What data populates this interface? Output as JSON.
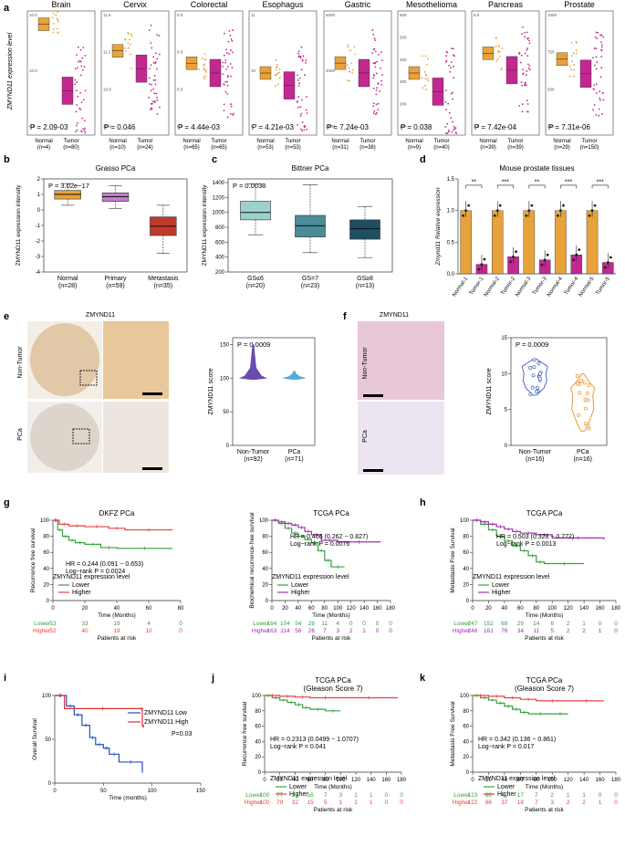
{
  "panel_letters": [
    "a",
    "b",
    "c",
    "d",
    "e",
    "f",
    "g",
    "h",
    "i",
    "j",
    "k"
  ],
  "colors": {
    "normal": "#e8a23a",
    "tumor": "#c2288f",
    "lower": "#3aa040",
    "higher": "#e84040",
    "higher_purple": "#a030b0",
    "low_blue": "#2050c0",
    "high_red": "#e03030"
  },
  "panel_a": {
    "ylabel": "ZMYND11 expression level",
    "panels": [
      {
        "title": "Brain",
        "p": "P = 2.09-03",
        "ticks": [
          "10.5",
          "10.0",
          "9.5"
        ],
        "normal_n": "(n=4)",
        "tumor_n": "(n=80)",
        "normal": 10.55,
        "tumor": 9.8,
        "ymin": 9.3,
        "ymax": 10.7
      },
      {
        "title": "Cervix",
        "p": "P = 0.046",
        "ticks": [
          "11.6",
          "11.2",
          "10.8",
          "10.4"
        ],
        "normal_n": "(n=10)",
        "tumor_n": "(n=24)",
        "normal": 11.25,
        "tumor": 11.05,
        "ymin": 10.3,
        "ymax": 11.7
      },
      {
        "title": "Colorectal",
        "p": "P = 4.44e-03",
        "ticks": [
          "9.5",
          "9.0",
          "8.5",
          "8.0"
        ],
        "normal_n": "(n=65)",
        "tumor_n": "(n=65)",
        "normal": 9.0,
        "tumor": 8.85,
        "ymin": 7.9,
        "ymax": 9.8
      },
      {
        "title": "Esophagus",
        "p": "P = 4.21e-03",
        "ticks": [
          "11",
          "10",
          "9"
        ],
        "normal_n": "(n=53)",
        "tumor_n": "(n=53)",
        "normal": 10.0,
        "tumor": 9.7,
        "ymin": 8.5,
        "ymax": 11.5
      },
      {
        "title": "Gastric",
        "p": "P = 7.24e-03",
        "ticks": [
          "6000",
          "4000",
          "2000"
        ],
        "normal_n": "(n=31)",
        "tumor_n": "(n=38)",
        "normal": 4700,
        "tumor": 4300,
        "ymin": 1800,
        "ymax": 6800
      },
      {
        "title": "Mesothelioma",
        "p": "P = 0.038",
        "ticks": [
          "600",
          "500",
          "400",
          "300",
          "200",
          "100"
        ],
        "normal_n": "(n=9)",
        "tumor_n": "(n=40)",
        "normal": 380,
        "tumor": 290,
        "ymin": 80,
        "ymax": 680
      },
      {
        "title": "Pancreas",
        "p": "P = 7.42e-04",
        "ticks": [
          "6.5",
          "5.5"
        ],
        "normal_n": "(n=39)",
        "tumor_n": "(n=39)",
        "normal": 6.45,
        "tumor": 6.15,
        "ymin": 5.0,
        "ymax": 7.2
      },
      {
        "title": "Prostate",
        "p": "P = 7.31e-06",
        "ticks": [
          "1000",
          "750",
          "500",
          "250"
        ],
        "normal_n": "(n=29)",
        "tumor_n": "(n=150)",
        "normal": 720,
        "tumor": 620,
        "ymin": 200,
        "ymax": 1050
      }
    ],
    "xlabel_normal": "Normal",
    "xlabel_tumor": "Tumor"
  },
  "panel_b": {
    "title": "Grasso PCa",
    "p": "P = 3.02e−17",
    "ylabel": "ZMYND11 expression intensity",
    "ticks": [
      "2",
      "1",
      "0",
      "-1",
      "-2",
      "-3",
      "-4"
    ],
    "groups": [
      {
        "label": "Normal",
        "n": "(n=28)",
        "q1": 0.7,
        "med": 1.0,
        "q3": 1.25,
        "lo": 0.3,
        "hi": 1.7
      },
      {
        "label": "Primary",
        "n": "(n=59)",
        "q1": 0.55,
        "med": 0.85,
        "q3": 1.1,
        "lo": 0.1,
        "hi": 1.55
      },
      {
        "label": "Metastasis",
        "n": "(n=35)",
        "q1": -1.65,
        "med": -1.05,
        "q3": -0.45,
        "lo": -2.8,
        "hi": 0.3
      }
    ]
  },
  "panel_c": {
    "title": "Bittner PCa",
    "p": "P = 0.0038",
    "ylabel": "ZMYND11 expression intensity",
    "ticks": [
      "1400",
      "1200",
      "1000",
      "800",
      "600",
      "400",
      "200"
    ],
    "groups": [
      {
        "label": "GS≤6",
        "n": "(n=20)",
        "q1": 900,
        "med": 1000,
        "q3": 1150,
        "lo": 700,
        "hi": 1380
      },
      {
        "label": "GS=7",
        "n": "(n=23)",
        "q1": 670,
        "med": 820,
        "q3": 960,
        "lo": 460,
        "hi": 1370
      },
      {
        "label": "GS≥8",
        "n": "(n=13)",
        "q1": 640,
        "med": 780,
        "q3": 900,
        "lo": 390,
        "hi": 1080
      }
    ]
  },
  "panel_d": {
    "title": "Mouse prostate tissues",
    "ylabel": "Zmynd11 Relative expression",
    "ticks": [
      "1.5",
      "1.0",
      "0.5",
      "0.0"
    ],
    "categories": [
      "Normal-1",
      "Tumor-1",
      "Normal-2",
      "Tumor-2",
      "Normal-3",
      "Tumor-3",
      "Normal-4",
      "Tumor-4",
      "Normal-5",
      "Tumor-5"
    ],
    "values": [
      1.0,
      0.15,
      1.0,
      0.27,
      1.0,
      0.22,
      1.0,
      0.3,
      1.0,
      0.18
    ],
    "sig": [
      "**",
      "***",
      "**",
      "***",
      "***"
    ]
  },
  "panel_e": {
    "stain": "ZMYND11",
    "row1": "Non-Tumor",
    "row2": "PCa",
    "p": "P = 0.0009",
    "ylabel": "ZMYND11 score",
    "ticks": [
      "150",
      "100",
      "50",
      "0"
    ],
    "g1": "Non-Tumor",
    "g1n": "(n=92)",
    "g2": "PCa",
    "g2n": "(n=71)"
  },
  "panel_f": {
    "stain": "ZMYND11",
    "row1": "Non-Tumor",
    "row2": "PCa",
    "p": "P = 0.0009",
    "ylabel": "ZMYND11 score",
    "ticks": [
      "15",
      "10",
      "5",
      "0"
    ],
    "g1": "Non-Tumor",
    "g1n": "(n=16)",
    "g2": "PCa",
    "g2n": "(n=16)"
  },
  "panel_g1": {
    "title": "DKFZ PCa",
    "ylabel": "Recurrence free survival",
    "hr": "HR = 0.244 (0.091 − 0.653)",
    "lr": "Log−rank  P = 0.0024",
    "legend_title": "ZMYND11 expression level",
    "lower": "Lower",
    "higher": "Higher",
    "xlabel": "Time (Months)",
    "xticks": [
      "0",
      "20",
      "40",
      "60",
      "80"
    ],
    "yticks": [
      "100",
      "80",
      "60",
      "40",
      "20",
      "0"
    ],
    "risk_lower": [
      "53",
      "33",
      "19",
      "4",
      "0"
    ],
    "risk_higher": [
      "52",
      "40",
      "19",
      "10",
      "0"
    ],
    "risk_label": "Patients at risk"
  },
  "panel_g2": {
    "title": "TCGA PCa",
    "ylabel": "Biochemical recurrence-free survival",
    "hr": "HR = 0.466 (0.262 − 0.827)",
    "lr": "Log−rank  P = 0.0076",
    "legend_title": "ZMYND11 expression level",
    "lower": "Lower",
    "higher": "Higher",
    "xlabel": "Time (Months)",
    "xticks": [
      "0",
      "20",
      "40",
      "60",
      "80",
      "100",
      "120",
      "140",
      "160",
      "180"
    ],
    "yticks": [
      "100",
      "80",
      "60",
      "40",
      "20",
      "0"
    ],
    "risk_lower": [
      "164",
      "104",
      "54",
      "28",
      "11",
      "4",
      "0",
      "0",
      "0",
      "0"
    ],
    "risk_higher": [
      "163",
      "114",
      "56",
      "26",
      "7",
      "3",
      "2",
      "1",
      "0",
      "0"
    ],
    "risk_label": "Patients at risk"
  },
  "panel_h": {
    "title": "TCGA PCa",
    "ylabel": "Metastasis Free Survival",
    "hr": "HR = 0.503 (0.328 − 0.772)",
    "lr": "Log−rank  P = 0.0013",
    "legend_title": "ZMYND11 expression level",
    "lower": "Lower",
    "higher": "Higher",
    "xlabel": "Time (Months)",
    "xticks": [
      "0",
      "20",
      "40",
      "60",
      "80",
      "100",
      "120",
      "140",
      "160",
      "180"
    ],
    "yticks": [
      "100",
      "80",
      "60",
      "40",
      "20",
      "0"
    ],
    "risk_lower": [
      "247",
      "152",
      "69",
      "29",
      "14",
      "6",
      "2",
      "1",
      "0",
      "0"
    ],
    "risk_higher": [
      "246",
      "161",
      "76",
      "34",
      "11",
      "5",
      "2",
      "2",
      "1",
      "0"
    ],
    "risk_label": "Patients at risk"
  },
  "panel_i": {
    "ylabel": "Overall Survival",
    "xlabel": "Time (months)",
    "low": "ZMYND11 Low",
    "high": "ZMYND11 High",
    "p": "P=0.03",
    "xticks": [
      "0",
      "50",
      "100",
      "150"
    ],
    "yticks": [
      "100",
      "50",
      "0"
    ]
  },
  "panel_j": {
    "title": "TCGA PCa",
    "subtitle": "(Gleason Score 7)",
    "ylabel": "Recurrence free survival",
    "hr": "HR = 0.2313 (0.0499 − 1.0707)",
    "lr": "Log−rank  P = 0.041",
    "legend_title": "ZMYND11 expression level",
    "lower": "Lower",
    "higher": "Higher",
    "xlabel": "Time (Months)",
    "xticks": [
      "0",
      "20",
      "40",
      "60",
      "80",
      "100",
      "120",
      "140",
      "160",
      "180"
    ],
    "yticks": [
      "100",
      "80",
      "60",
      "40",
      "20",
      "0"
    ],
    "risk_lower": [
      "100",
      "77",
      "35",
      "16",
      "7",
      "3",
      "1",
      "1",
      "0",
      "0"
    ],
    "risk_higher": [
      "100",
      "79",
      "32",
      "15",
      "5",
      "1",
      "1",
      "1",
      "0",
      "0"
    ],
    "risk_label": "Patients at risk"
  },
  "panel_k": {
    "title": "TCGA PCa",
    "subtitle": "(Gleason Score 7)",
    "ylabel": "Metastasis Free Survival",
    "hr": "HR = 0.342 (0.136 − 0.861)",
    "lr": "Log−rank  P = 0.017",
    "legend_title": "ZMYND11 expression level",
    "lower": "Lower",
    "higher": "Higher",
    "xlabel": "Time (Months)",
    "xticks": [
      "0",
      "20",
      "40",
      "60",
      "80",
      "100",
      "120",
      "140",
      "160",
      "180"
    ],
    "yticks": [
      "100",
      "80",
      "60",
      "40",
      "20",
      "0"
    ],
    "risk_lower": [
      "123",
      "86",
      "41",
      "17",
      "7",
      "2",
      "1",
      "1",
      "0",
      "0"
    ],
    "risk_higher": [
      "122",
      "86",
      "37",
      "18",
      "7",
      "3",
      "2",
      "2",
      "1",
      "0"
    ],
    "risk_label": "Patients at risk"
  }
}
